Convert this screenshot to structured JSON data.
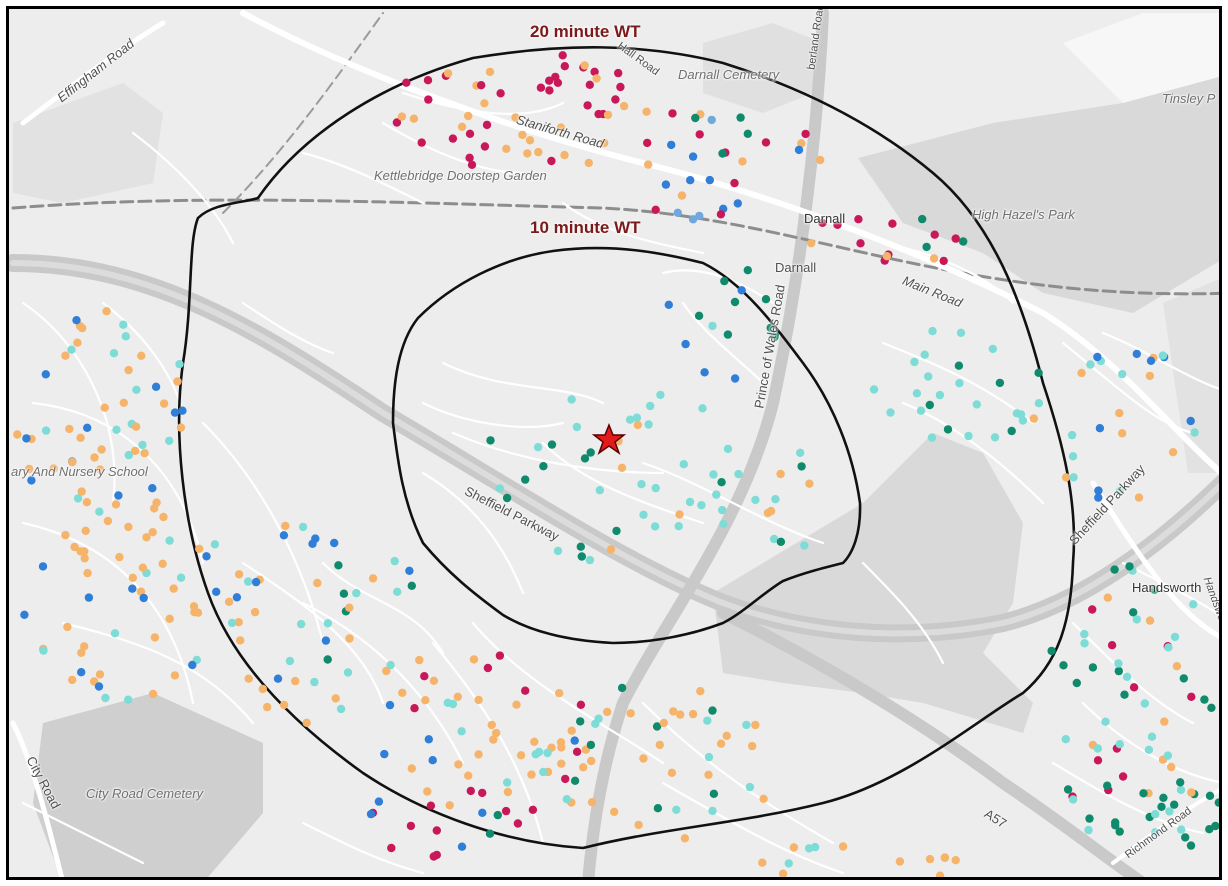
{
  "isochrones": {
    "outer_label": "20 minute WT",
    "inner_label": "10 minute WT",
    "line_color": "#111111"
  },
  "origin_marker": {
    "icon": "star-icon",
    "color": "#e31a1c"
  },
  "place_labels": {
    "effingham_road": "Effingham Road",
    "darnall_cemetery": "Darnall Cemetery",
    "tinsley": "Tinsley P",
    "staniforth_road": "Staniforth Road",
    "kettlebridge": "Kettlebridge Doorstep Garden",
    "darnall_1": "Darnall",
    "darnall_2": "Darnall",
    "high_hazels": "High Hazel's Park",
    "main_road": "Main Road",
    "prince_of_wales": "Prince of Wales Road",
    "sheffield_parkway_1": "Sheffield Parkway",
    "sheffield_parkway_2": "Sheffield Parkway",
    "nursery_school": "ary And Nursery School",
    "handsworth": "Handsworth",
    "handsworth_road": "Handsworth",
    "city_road": "City Road",
    "city_road_cemetery": "City Road Cemetery",
    "a57": "A57",
    "richmond_road": "Richmond Road",
    "hall_road": "Hall Road",
    "cumberland_road": "berland Road"
  },
  "colors": {
    "land": "#ededed",
    "park": "#d7d7d7",
    "road_major": "#c8c8c8",
    "road_minor": "#ffffff",
    "dot_crimson": "#c9185a",
    "dot_orange": "#f5b46a",
    "dot_blue": "#2f7ed8",
    "dot_lightblue": "#6fa8dc",
    "dot_cyan": "#7ddcd6",
    "dot_teal": "#0f8a6c"
  }
}
